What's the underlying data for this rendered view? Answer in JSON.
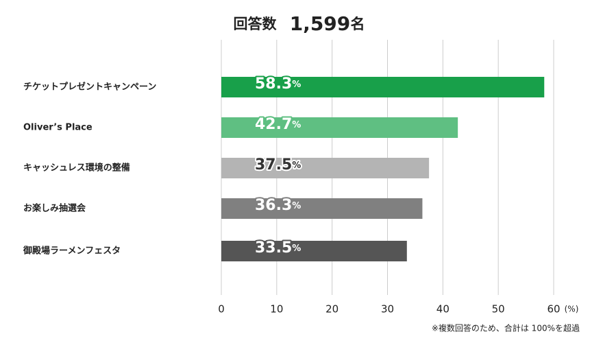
{
  "chart_data": {
    "type": "bar",
    "orientation": "horizontal",
    "title": "回答数",
    "count_label": "1,599",
    "count_unit": "名",
    "categories": [
      "チケットプレゼントキャンペーン",
      "Oliver’s Place",
      "キャッシュレス環境の整備",
      "お楽しみ抽選会",
      "御殿場ラーメンフェスタ"
    ],
    "values": [
      58.3,
      42.7,
      37.5,
      36.3,
      33.5
    ],
    "value_unit": "%",
    "colors": [
      "#18a04a",
      "#5fbf82",
      "#b4b4b4",
      "#808080",
      "#555555"
    ],
    "label_colors": [
      "#ffffff",
      "#ffffff",
      "#333333",
      "#ffffff",
      "#ffffff"
    ],
    "label_outlines": [
      "#18a04a",
      "#5fbf82",
      "#ffffff",
      "#808080",
      "#555555"
    ],
    "xlim": [
      0,
      60
    ],
    "xticks": [
      0,
      10,
      20,
      30,
      40,
      50,
      60
    ],
    "x_unit": "(%)",
    "grid": true,
    "footnote": "※複数回答のため、合計は 100%を超過"
  }
}
